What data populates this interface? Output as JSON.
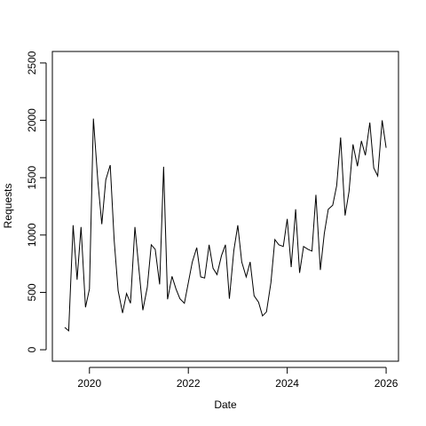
{
  "chart_data": {
    "type": "line",
    "x_label": "Date",
    "y_label": "Requests",
    "x": [
      2019.5,
      2019.58,
      2019.67,
      2019.75,
      2019.83,
      2019.92,
      2020,
      2020.08,
      2020.17,
      2020.25,
      2020.33,
      2020.42,
      2020.5,
      2020.58,
      2020.67,
      2020.75,
      2020.83,
      2020.92,
      2021,
      2021.08,
      2021.17,
      2021.25,
      2021.33,
      2021.42,
      2021.5,
      2021.58,
      2021.67,
      2021.75,
      2021.83,
      2021.92,
      2022,
      2022.08,
      2022.17,
      2022.25,
      2022.33,
      2022.42,
      2022.5,
      2022.58,
      2022.67,
      2022.75,
      2022.83,
      2022.92,
      2023,
      2023.08,
      2023.17,
      2023.25,
      2023.33,
      2023.42,
      2023.5,
      2023.58,
      2023.67,
      2023.75,
      2023.83,
      2023.92,
      2024,
      2024.08,
      2024.17,
      2024.25,
      2024.33,
      2024.42,
      2024.5,
      2024.58,
      2024.67,
      2024.75,
      2024.83,
      2024.92,
      2025,
      2025.08,
      2025.17,
      2025.25,
      2025.33,
      2025.42,
      2025.5,
      2025.58,
      2025.67,
      2025.75,
      2025.83,
      2025.92,
      2026
    ],
    "values": [
      195,
      165,
      1085,
      610,
      1070,
      370,
      530,
      2015,
      1470,
      1095,
      1480,
      1610,
      955,
      515,
      320,
      490,
      405,
      1070,
      705,
      345,
      545,
      915,
      875,
      570,
      1595,
      440,
      640,
      530,
      445,
      405,
      585,
      765,
      890,
      635,
      625,
      915,
      710,
      655,
      820,
      915,
      445,
      865,
      1085,
      765,
      635,
      765,
      470,
      415,
      295,
      330,
      585,
      960,
      915,
      900,
      1140,
      720,
      1225,
      670,
      900,
      875,
      860,
      1350,
      695,
      1015,
      1225,
      1260,
      1430,
      1850,
      1170,
      1380,
      1790,
      1600,
      1820,
      1695,
      1980,
      1585,
      1515,
      2000,
      1760
    ],
    "color": "#000000",
    "xlim": [
      2019.25,
      2026.25
    ],
    "xticks": [
      2020,
      2022,
      2024,
      2026
    ],
    "ylim": [
      -100,
      2600
    ],
    "yticks": [
      0,
      500,
      1000,
      1500,
      2000,
      2500
    ],
    "grid": false
  }
}
